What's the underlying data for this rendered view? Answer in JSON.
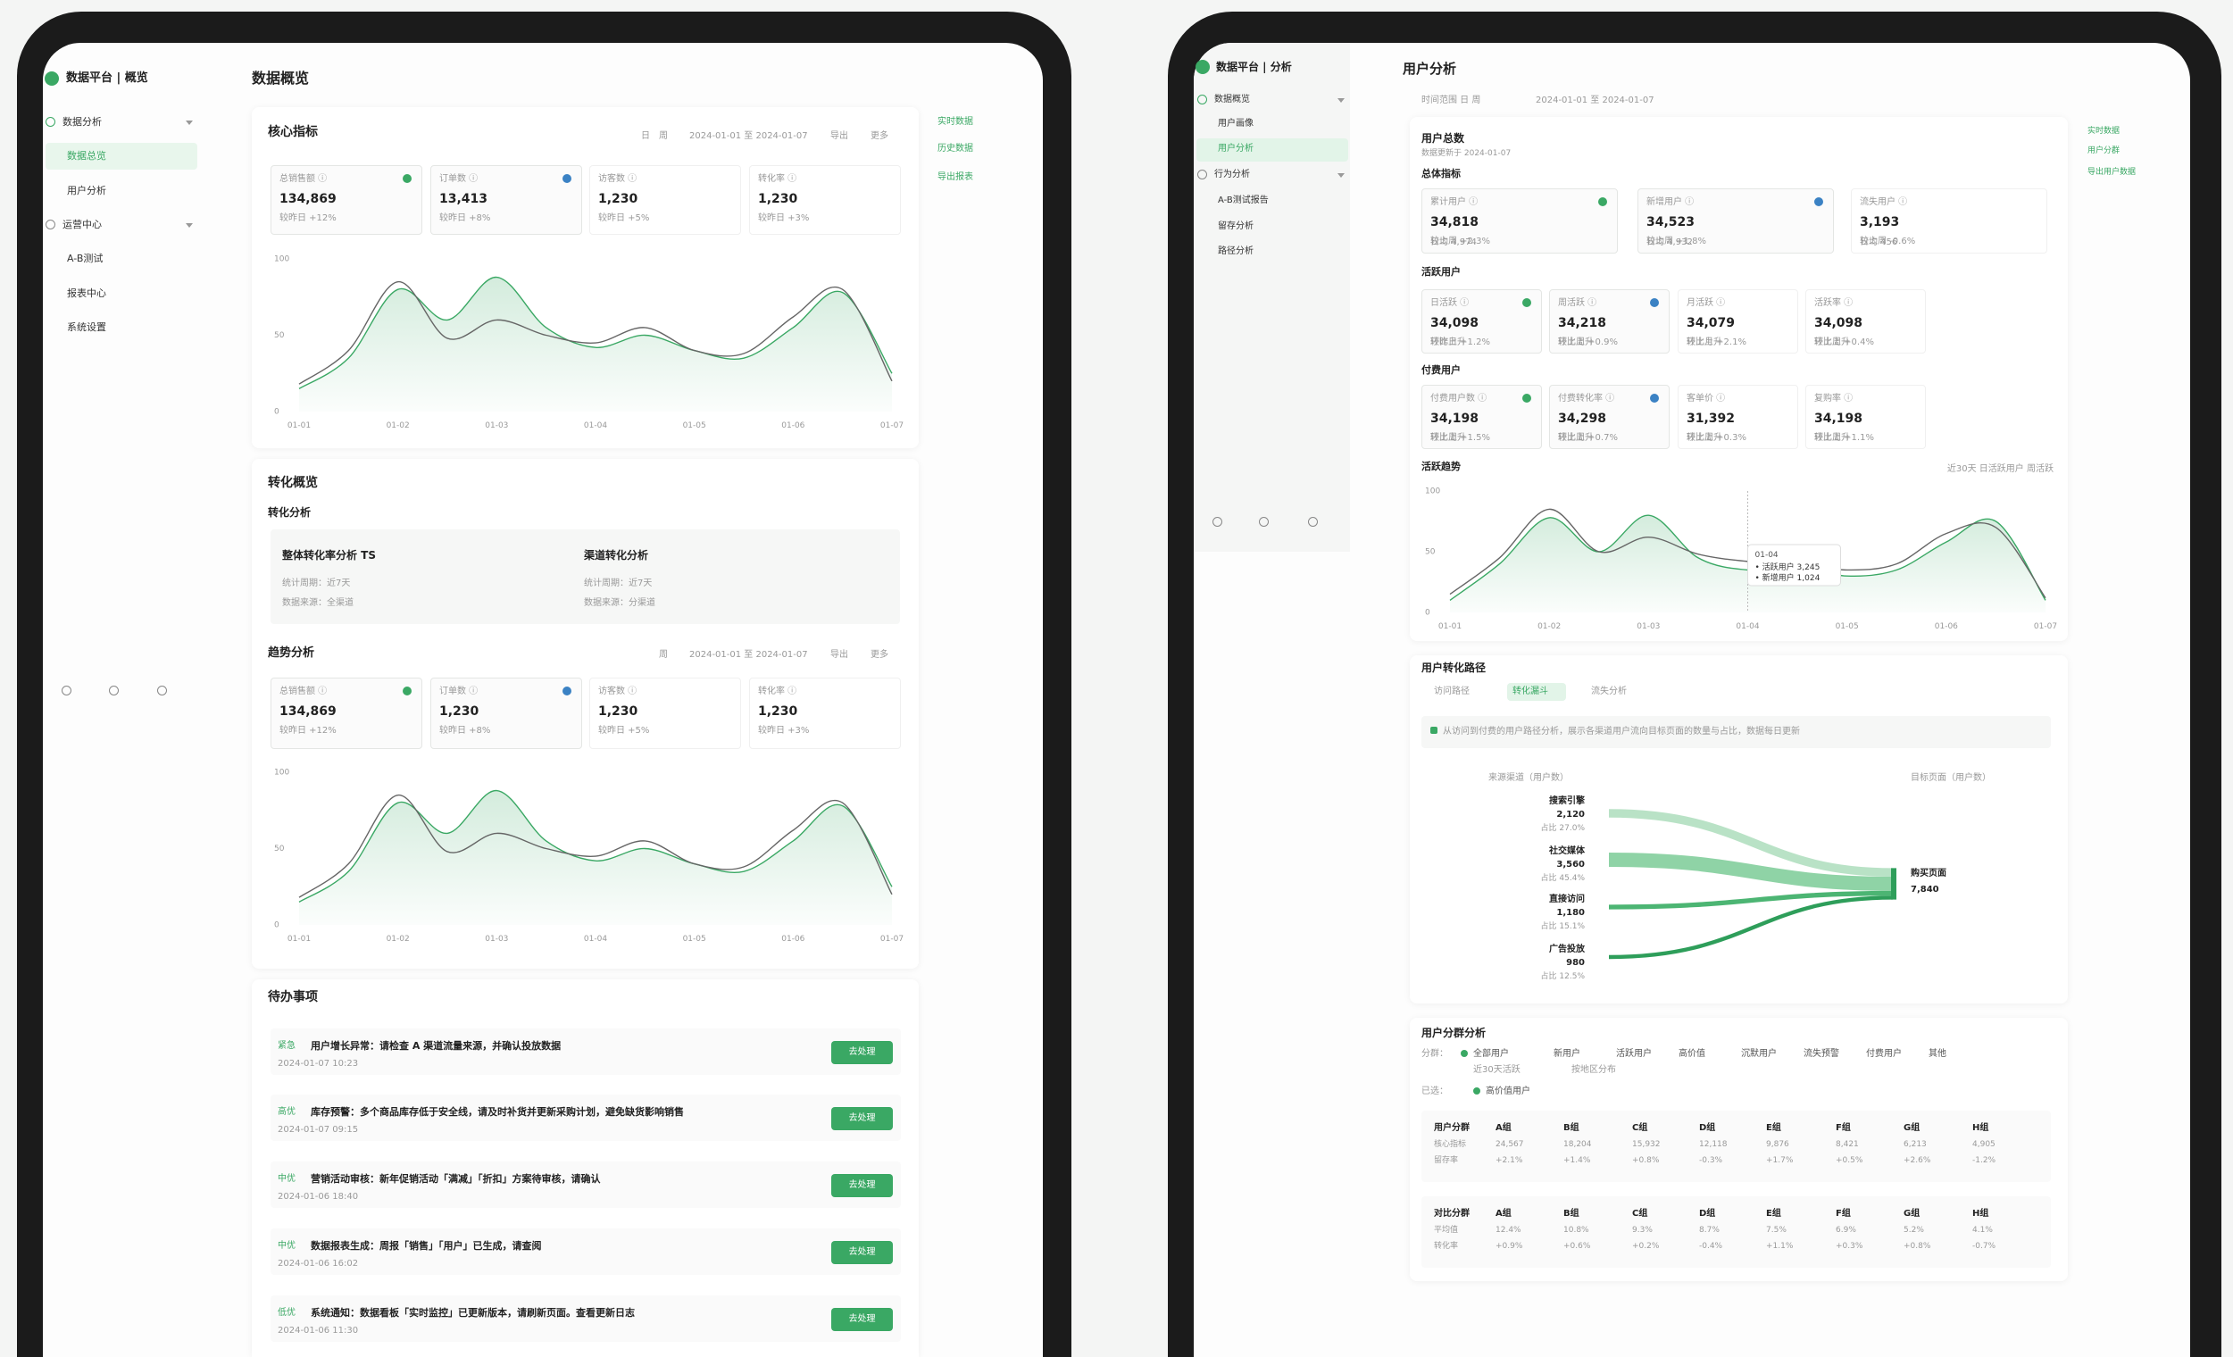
{
  "left": {
    "brand": "数据平台 | 概览",
    "nav": [
      "数据分析",
      "数据总览",
      "用户分析",
      "运营中心",
      "A-B测试",
      "报表中心",
      "系统设置"
    ],
    "title": "数据概览",
    "side_links": [
      "实时数据",
      "历史数据",
      "导出报表"
    ],
    "overview": {
      "title": "核心指标",
      "filters": [
        "日",
        "周",
        "2024-01-01 至 2024-01-07",
        "导出",
        "更多"
      ],
      "kpis": [
        {
          "label": "总销售额 ⓘ",
          "value": "134,869",
          "note": "较昨日 +12%"
        },
        {
          "label": "订单数 ⓘ",
          "value": "13,413",
          "note": "较昨日 +8%"
        },
        {
          "label": "访客数 ⓘ",
          "value": "1,230",
          "note": "较昨日 +5%"
        },
        {
          "label": "转化率 ⓘ",
          "value": "1,230",
          "note": "较昨日 +3%"
        }
      ],
      "chart": {
        "type": "line",
        "categories": [
          "01-01",
          null,
          "01-02",
          null,
          "01-03",
          null,
          "01-04",
          null,
          "01-05",
          null,
          "01-06",
          null,
          "01-07"
        ],
        "ylim": [
          0,
          100
        ],
        "yticks": [
          0,
          50,
          100
        ],
        "series": [
          {
            "color": "#3aa864",
            "fill": true,
            "values": [
              15,
              35,
              80,
              60,
              88,
              55,
              42,
              50,
              40,
              35,
              55,
              78,
              25
            ]
          },
          {
            "color": "#666666",
            "fill": false,
            "values": [
              18,
              40,
              85,
              48,
              60,
              50,
              45,
              55,
              40,
              38,
              62,
              80,
              20
            ]
          }
        ]
      }
    },
    "conversion": {
      "title": "转化概览",
      "subtitle": "转化分析",
      "items": [
        {
          "title": "整体转化率分析 TS",
          "lines": [
            "统计周期：近7天",
            "数据来源：全渠道"
          ]
        },
        {
          "title": "渠道转化分析",
          "lines": [
            "统计周期：近7天",
            "数据来源：分渠道"
          ]
        }
      ]
    },
    "trend": {
      "title": "趋势分析",
      "filters": [
        "周",
        "2024-01-01 至 2024-01-07",
        "导出",
        "更多"
      ],
      "kpis": [
        {
          "label": "总销售额 ⓘ",
          "value": "134,869",
          "note": "较昨日 +12%"
        },
        {
          "label": "订单数 ⓘ",
          "value": "1,230",
          "note": "较昨日 +8%"
        },
        {
          "label": "访客数 ⓘ",
          "value": "1,230",
          "note": "较昨日 +5%"
        },
        {
          "label": "转化率 ⓘ",
          "value": "1,230",
          "note": "较昨日 +3%"
        }
      ],
      "chart": {
        "type": "line",
        "categories": [
          "01-01",
          null,
          "01-02",
          null,
          "01-03",
          null,
          "01-04",
          null,
          "01-05",
          null,
          "01-06",
          null,
          "01-07"
        ],
        "ylim": [
          0,
          100
        ],
        "yticks": [
          0,
          50,
          100
        ],
        "series": [
          {
            "color": "#3aa864",
            "fill": true,
            "values": [
              15,
              35,
              80,
              60,
              88,
              55,
              42,
              50,
              40,
              35,
              55,
              78,
              25
            ]
          },
          {
            "color": "#666666",
            "fill": false,
            "values": [
              18,
              40,
              85,
              48,
              60,
              50,
              45,
              55,
              40,
              38,
              62,
              80,
              20
            ]
          }
        ]
      }
    },
    "tasks": {
      "title": "待办事项",
      "items": [
        {
          "tag": "紧急",
          "text": "用户增长异常：请检查 A 渠道流量来源，并确认投放数据",
          "meta": "2024-01-07 10:23",
          "button": "去处理"
        },
        {
          "tag": "高优",
          "text": "库存预警：多个商品库存低于安全线，请及时补货并更新采购计划，避免缺货影响销售",
          "meta": "2024-01-07 09:15",
          "button": "去处理"
        },
        {
          "tag": "中优",
          "text": "营销活动审核：新年促销活动「满减」「折扣」方案待审核，请确认",
          "meta": "2024-01-06 18:40",
          "button": "去处理"
        },
        {
          "tag": "中优",
          "text": "数据报表生成：周报「销售」「用户」已生成，请查阅",
          "meta": "2024-01-06 16:02",
          "button": "去处理"
        },
        {
          "tag": "低优",
          "text": "系统通知：数据看板「实时监控」已更新版本，请刷新页面。查看更新日志",
          "meta": "2024-01-06 11:30",
          "button": "去处理"
        }
      ]
    }
  },
  "right": {
    "brand": "数据平台 | 分析",
    "nav": [
      "数据概览",
      "用户画像",
      "用户分析",
      "行为分析",
      "A-B测试报告",
      "留存分析",
      "路径分析"
    ],
    "title": "用户分析",
    "filters": [
      "时间范围 日 周",
      "2024-01-01 至 2024-01-07"
    ],
    "side_links": [
      "实时数据",
      "用户分群",
      "导出用户数据"
    ],
    "summary": {
      "title": "用户总数",
      "subtitle": "数据更新于 2024-01-07"
    },
    "overall": {
      "title": "总体指标",
      "cards": [
        {
          "label": "累计用户 ⓘ",
          "value": "34,818",
          "note": "较上周 +2.3%",
          "sub": "日均 4,974"
        },
        {
          "label": "新增用户 ⓘ",
          "value": "34,523",
          "note": "较上周 +1.8%",
          "sub": "日均 4,932"
        },
        {
          "label": "流失用户 ⓘ",
          "value": "3,193",
          "note": "较上周 -0.6%",
          "sub": "日均 456"
        }
      ]
    },
    "active": {
      "title": "活跃用户",
      "cards": [
        {
          "label": "日活跃 ⓘ",
          "value": "34,098",
          "note": "较昨日 +1.2%",
          "sub": "环比上升"
        },
        {
          "label": "周活跃 ⓘ",
          "value": "34,218",
          "note": "较上周 +0.9%",
          "sub": "环比上升"
        },
        {
          "label": "月活跃 ⓘ",
          "value": "34,079",
          "note": "较上月 +2.1%",
          "sub": "环比上升"
        },
        {
          "label": "活跃率 ⓘ",
          "value": "34,098",
          "note": "较上周 +0.4%",
          "sub": "环比上升"
        }
      ]
    },
    "paying": {
      "title": "付费用户",
      "cards": [
        {
          "label": "付费用户数 ⓘ",
          "value": "34,198",
          "note": "较上周 +1.5%",
          "sub": "环比上升"
        },
        {
          "label": "付费转化率 ⓘ",
          "value": "34,298",
          "note": "较上周 +0.7%",
          "sub": "环比上升"
        },
        {
          "label": "客单价 ⓘ",
          "value": "31,392",
          "note": "较上周 +0.3%",
          "sub": "环比上升"
        },
        {
          "label": "复购率 ⓘ",
          "value": "34,198",
          "note": "较上周 +1.1%",
          "sub": "环比上升"
        }
      ]
    },
    "trend": {
      "title": "活跃趋势",
      "filters": "近30天 日活跃用户 周活跃",
      "chart": {
        "type": "line",
        "categories": [
          "01-01",
          null,
          "01-02",
          null,
          "01-03",
          null,
          "01-04",
          null,
          "01-05",
          null,
          "01-06",
          null,
          "01-07"
        ],
        "ylim": [
          0,
          100
        ],
        "yticks": [
          0,
          50,
          100
        ],
        "series": [
          {
            "color": "#3aa864",
            "fill": true,
            "values": [
              10,
              40,
              78,
              50,
              80,
              45,
              35,
              38,
              30,
              35,
              58,
              75,
              10
            ]
          },
          {
            "color": "#666666",
            "fill": false,
            "values": [
              15,
              45,
              85,
              50,
              62,
              48,
              42,
              40,
              35,
              40,
              65,
              70,
              12
            ]
          }
        ],
        "tooltip": {
          "title": "01-04",
          "lines": [
            "• 活跃用户 3,245",
            "• 新增用户 1,024"
          ]
        }
      }
    },
    "funnel": {
      "title": "用户转化路径",
      "tabs": [
        "访问路径",
        "转化漏斗",
        "流失分析"
      ],
      "info": "从访问到付费的用户路径分析，展示各渠道用户流向目标页面的数量与占比，数据每日更新",
      "left_header": "来源渠道（用户数）",
      "right_header": "目标页面（用户数）",
      "sankey": {
        "labels": [
          "搜索引擎",
          "社交媒体",
          "直接访问",
          "广告投放"
        ],
        "values": [
          2120,
          3560,
          1180,
          980
        ],
        "value_labels": [
          "2,120",
          "3,560",
          "1,180",
          "980"
        ],
        "shares": [
          "占比 27.0%",
          "占比 45.4%",
          "占比 15.1%",
          "占比 12.5%"
        ],
        "colors": [
          "#b9e2c6",
          "#8fd3a6",
          "#4cb573",
          "#2e9e5a"
        ],
        "target": {
          "label": "购买页面",
          "value": 7840,
          "value_label": "7,840"
        }
      }
    },
    "segments": {
      "title": "用户分群分析",
      "filter_label": "分群：",
      "chips": [
        "全部用户",
        "新用户",
        "活跃用户",
        "高价值",
        "沉默用户",
        "流失预警",
        "付费用户",
        "其他"
      ],
      "chips2": [
        "近30天活跃",
        "按地区分布"
      ],
      "selected_label": "已选：",
      "selected": "高价值用户",
      "rows": [
        [
          [
            "用户分群",
            "核心指标",
            "留存率"
          ],
          [
            "A组",
            "24,567",
            "+2.1%"
          ],
          [
            "B组",
            "18,204",
            "+1.4%"
          ],
          [
            "C组",
            "15,932",
            "+0.8%"
          ],
          [
            "D组",
            "12,118",
            "-0.3%"
          ],
          [
            "E组",
            "9,876",
            "+1.7%"
          ],
          [
            "F组",
            "8,421",
            "+0.5%"
          ],
          [
            "G组",
            "6,213",
            "+2.6%"
          ],
          [
            "H组",
            "4,905",
            "-1.2%"
          ]
        ],
        [
          [
            "对比分群",
            "平均值",
            "转化率"
          ],
          [
            "A组",
            "12.4%",
            "+0.9%"
          ],
          [
            "B组",
            "10.8%",
            "+0.6%"
          ],
          [
            "C组",
            "9.3%",
            "+0.2%"
          ],
          [
            "D组",
            "8.7%",
            "-0.4%"
          ],
          [
            "E组",
            "7.5%",
            "+1.1%"
          ],
          [
            "F组",
            "6.9%",
            "+0.3%"
          ],
          [
            "G组",
            "5.2%",
            "+0.8%"
          ],
          [
            "H组",
            "4.1%",
            "-0.7%"
          ]
        ]
      ]
    }
  }
}
